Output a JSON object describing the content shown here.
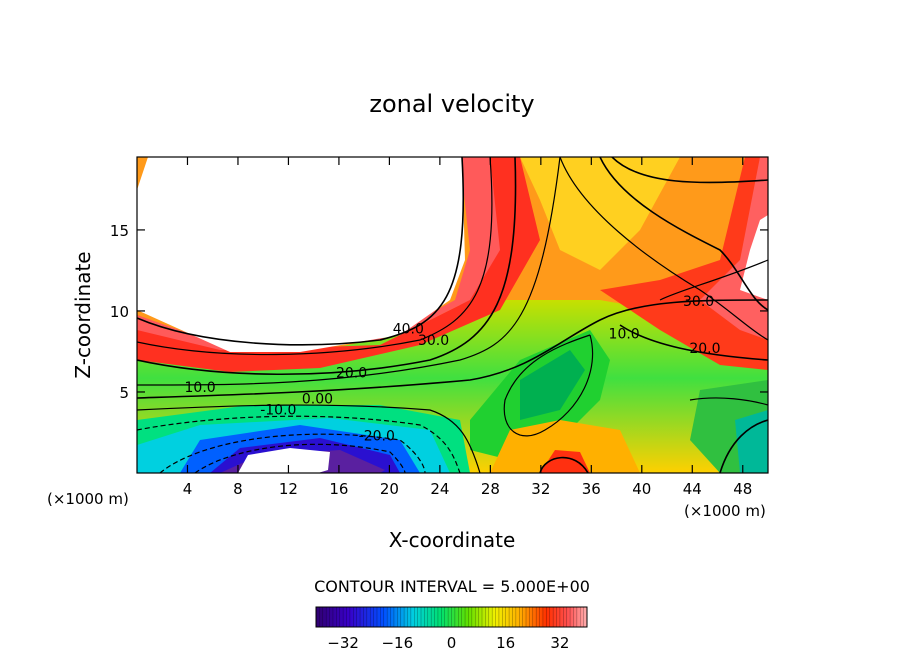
{
  "chart_data": {
    "type": "contour",
    "title": "zonal velocity",
    "xlabel": "X-coordinate",
    "ylabel": "Z-coordinate",
    "x_unit": "(×1000 m)",
    "z_unit": "(×1000 m)",
    "xlim": [
      0,
      50
    ],
    "ylim": [
      0,
      19.5
    ],
    "x_ticks": [
      4,
      8,
      12,
      16,
      20,
      24,
      28,
      32,
      36,
      40,
      44,
      48
    ],
    "y_ticks": [
      5,
      10,
      15
    ],
    "contour_interval_label": "CONTOUR INTERVAL = 5.000E+00",
    "contour_labels": [
      {
        "text": "40.0",
        "x": 21.5,
        "z": 8.6
      },
      {
        "text": "30.0",
        "x": 23.5,
        "z": 7.9
      },
      {
        "text": "20.0",
        "x": 17.0,
        "z": 5.9
      },
      {
        "text": "10.0",
        "x": 5.0,
        "z": 5.0
      },
      {
        "text": "0.00",
        "x": 14.3,
        "z": 4.3
      },
      {
        "text": "-10.0",
        "x": 11.2,
        "z": 3.6
      },
      {
        "text": "-20.0",
        "x": 19.0,
        "z": 2.0
      },
      {
        "text": "10.0",
        "x": 38.6,
        "z": 8.3
      },
      {
        "text": "30.0",
        "x": 44.5,
        "z": 10.3
      },
      {
        "text": "20.0",
        "x": 45.0,
        "z": 7.4
      }
    ],
    "colorbar": {
      "range": [
        -40,
        40
      ],
      "ticks": [
        -32,
        -16,
        0,
        16,
        32
      ],
      "tick_labels": [
        "−32",
        "−16",
        "0",
        "16",
        "32"
      ]
    }
  }
}
